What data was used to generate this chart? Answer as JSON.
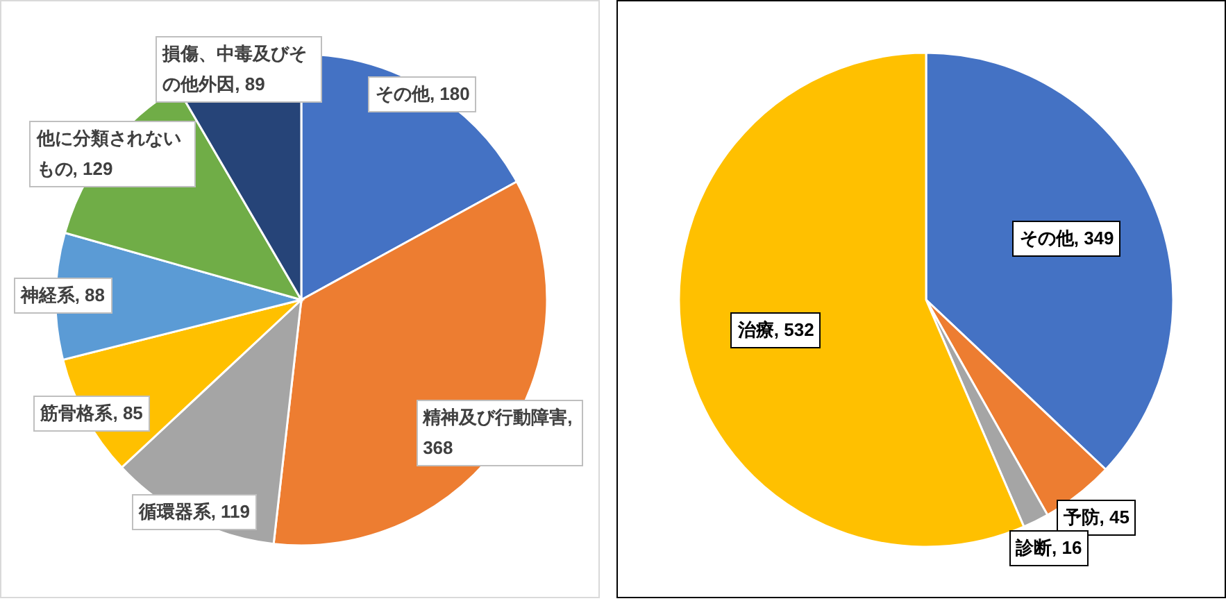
{
  "chart_data": [
    {
      "type": "pie",
      "categories": [
        "その他",
        "精神及び行動障害",
        "循環器系",
        "筋骨格系",
        "神経系",
        "他に分類されないもの",
        "損傷、中毒及びその他外因"
      ],
      "values": [
        180,
        368,
        119,
        85,
        88,
        129,
        89
      ],
      "colors": [
        "#4472c4",
        "#ed7d31",
        "#a5a5a5",
        "#ffc000",
        "#5b9bd5",
        "#70ad47",
        "#264478"
      ],
      "value_labels": [
        ", 180",
        ", 368",
        ", 119",
        ", 85",
        ", 88",
        ", 129",
        ", 89"
      ]
    },
    {
      "type": "pie",
      "categories": [
        "その他",
        "予防",
        "診断",
        "治療"
      ],
      "values": [
        349,
        45,
        16,
        532
      ],
      "colors": [
        "#4472c4",
        "#ed7d31",
        "#a5a5a5",
        "#ffc000"
      ],
      "value_labels": [
        ", 349",
        ", 45",
        ", 16",
        ", 532"
      ]
    }
  ]
}
